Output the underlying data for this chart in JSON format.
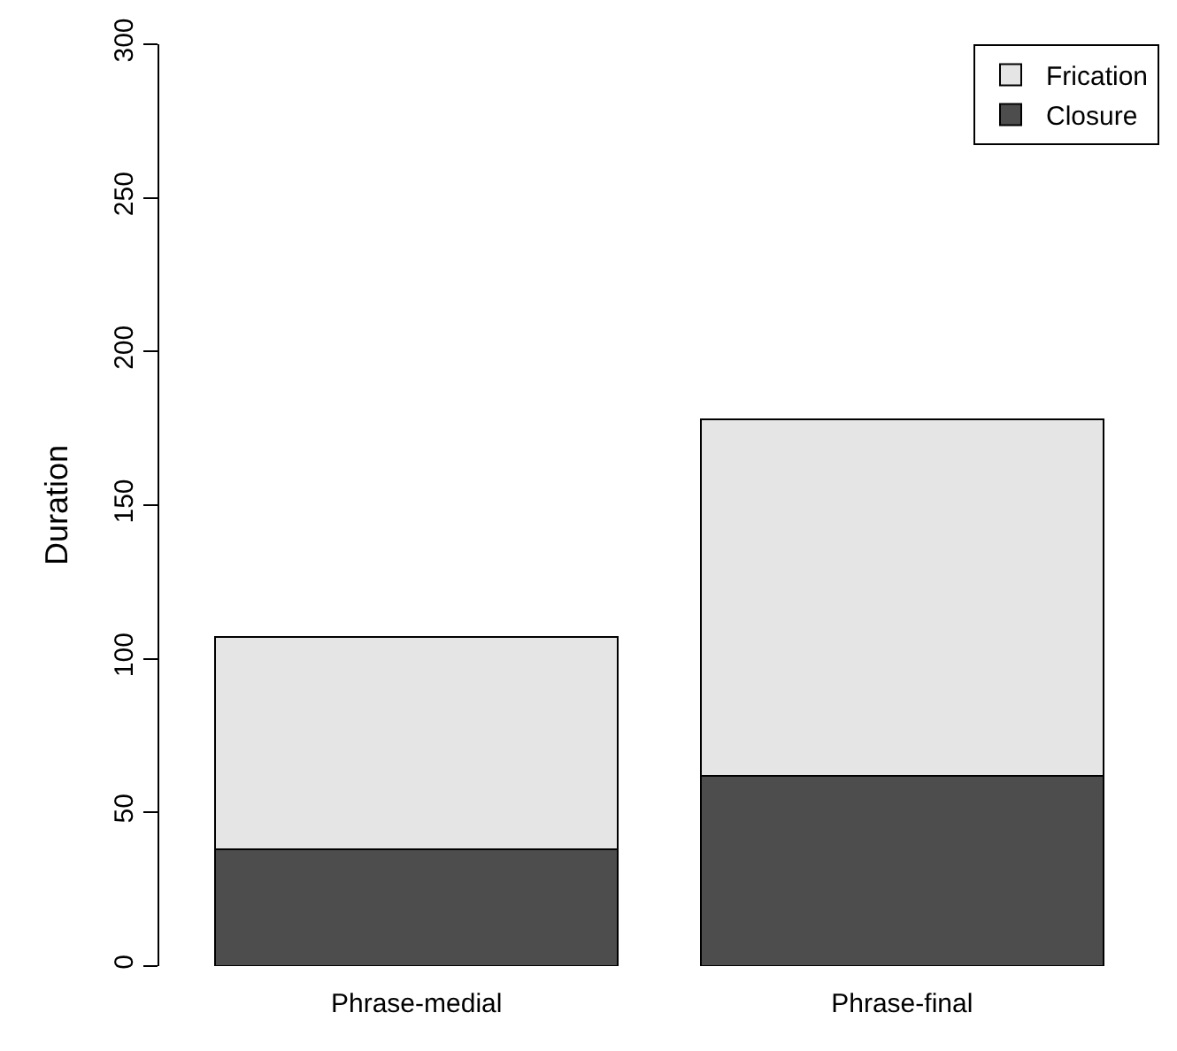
{
  "chart_data": {
    "type": "bar",
    "ylabel": "Duration",
    "categories": [
      "Phrase-medial",
      "Phrase-final"
    ],
    "series": [
      {
        "name": "Closure",
        "color": "#4d4d4d",
        "values": [
          38,
          62
        ]
      },
      {
        "name": "Frication",
        "color": "#e5e5e5",
        "values": [
          69,
          116
        ]
      }
    ],
    "stacked": true,
    "ylim": [
      0,
      300
    ],
    "yticks": [
      0,
      50,
      100,
      150,
      200,
      250,
      300
    ],
    "grid": false,
    "legend": "top right"
  }
}
